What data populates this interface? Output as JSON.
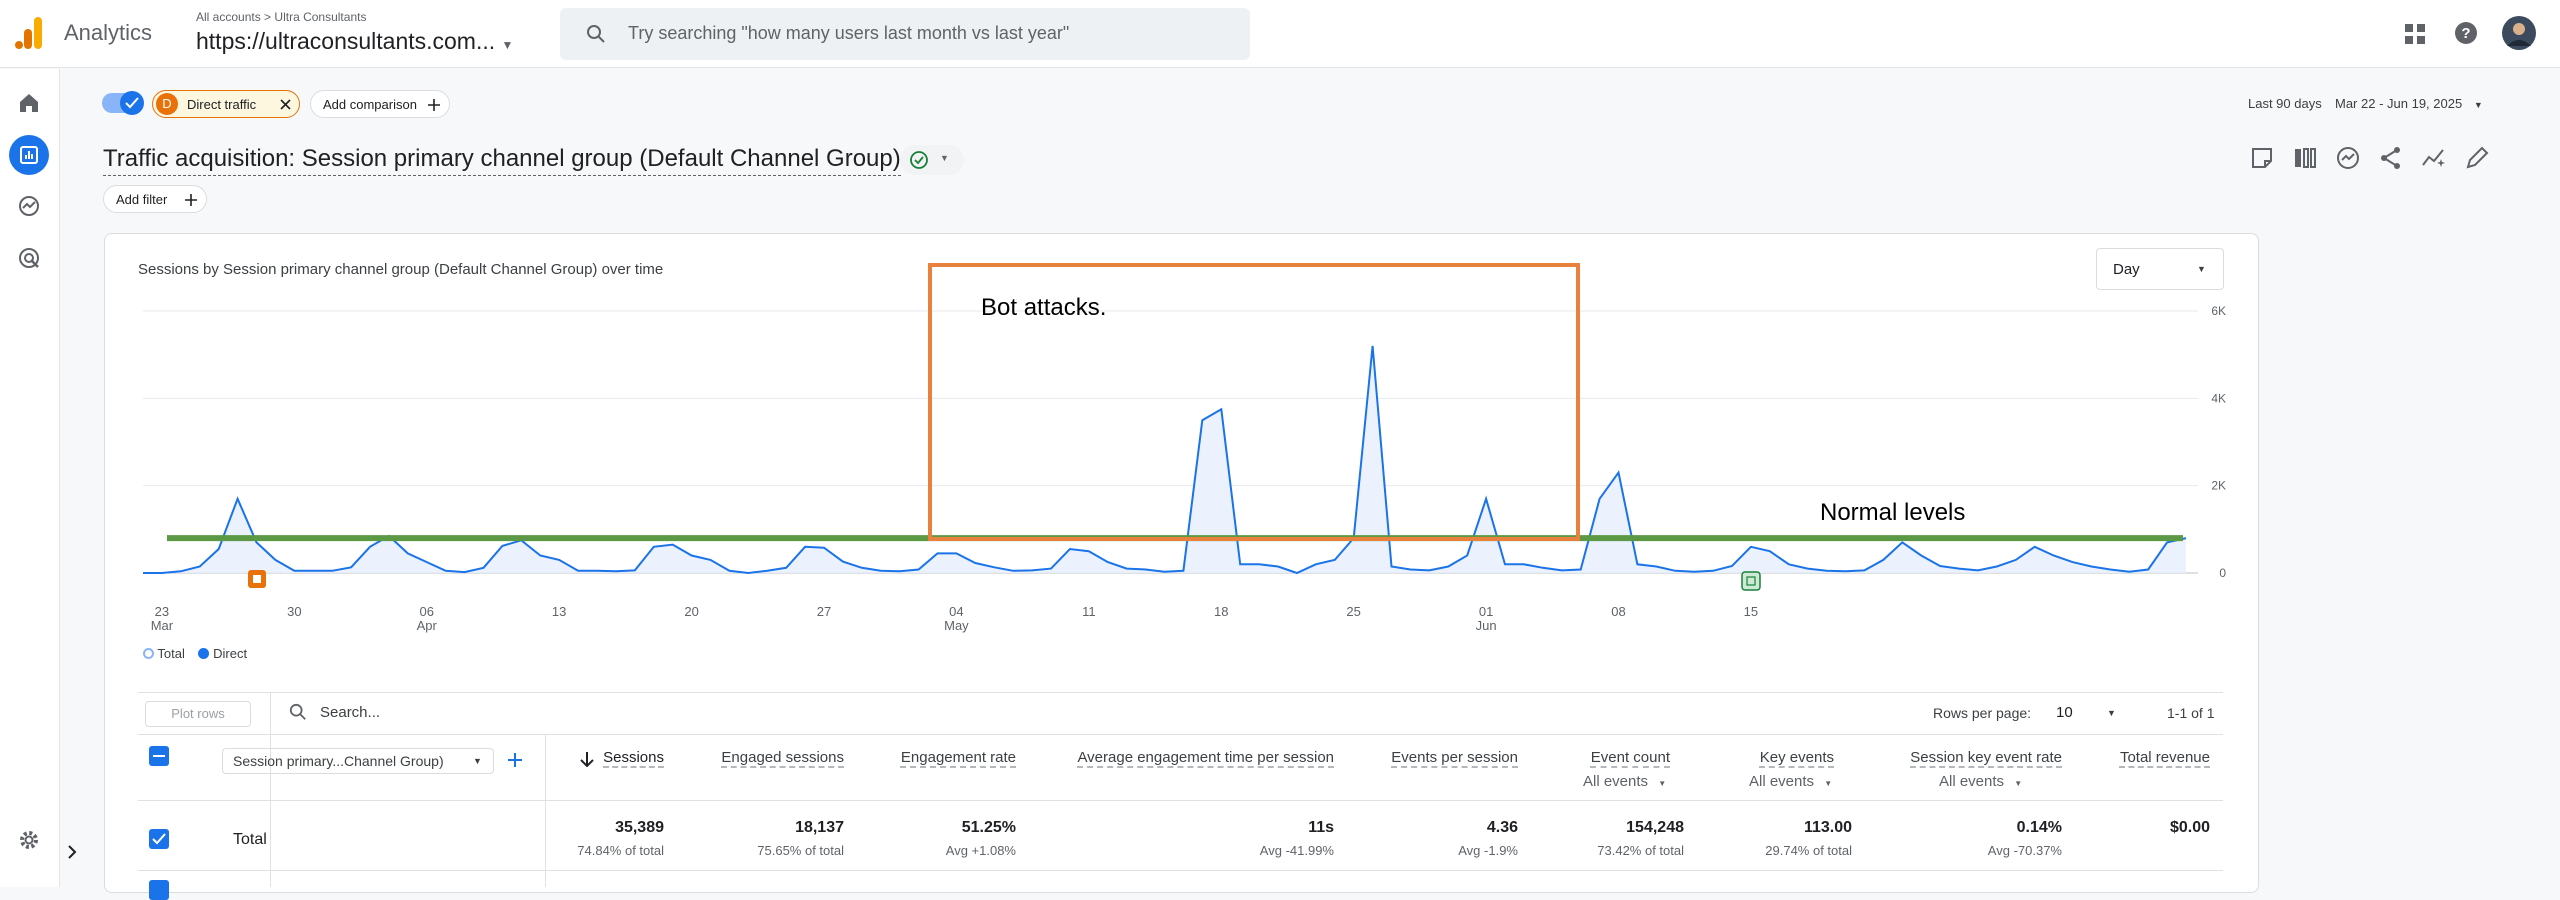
{
  "app": {
    "title": "Analytics"
  },
  "breadcrumb": {
    "all_accounts": "All accounts",
    "separator": ">",
    "account": "Ultra Consultants"
  },
  "property": {
    "name": "https://ultraconsultants.com..."
  },
  "search": {
    "placeholder": "Try searching \"how many users last month vs last year\""
  },
  "filters": {
    "chip_initial": "D",
    "chip_label": "Direct traffic",
    "add_comparison": "Add comparison",
    "add_filter": "Add filter"
  },
  "date_range": {
    "label": "Last 90 days",
    "range": "Mar 22 - Jun 19, 2025"
  },
  "report": {
    "title": "Traffic acquisition: Session primary channel group (Default Channel Group)"
  },
  "chart_card": {
    "title": "Sessions by Session primary channel group (Default Channel Group) over time",
    "granularity": "Day"
  },
  "annotations": {
    "bot_attacks": "Bot attacks.",
    "normal_levels": "Normal levels"
  },
  "colors": {
    "accent": "#1a73e8",
    "line": "#1a73e8",
    "annotation_box": "#e8813d",
    "normal_line": "#5b9945",
    "chip": "#e8710a"
  },
  "chart_data": {
    "type": "line",
    "y_ticks": [
      "6K",
      "4K",
      "2K",
      "0"
    ],
    "ylim": [
      0,
      6000
    ],
    "x_ticks": [
      {
        "day": "23",
        "month": "Mar"
      },
      {
        "day": "30",
        "month": ""
      },
      {
        "day": "06",
        "month": "Apr"
      },
      {
        "day": "13",
        "month": ""
      },
      {
        "day": "20",
        "month": ""
      },
      {
        "day": "27",
        "month": ""
      },
      {
        "day": "04",
        "month": "May"
      },
      {
        "day": "11",
        "month": ""
      },
      {
        "day": "18",
        "month": ""
      },
      {
        "day": "25",
        "month": ""
      },
      {
        "day": "01",
        "month": "Jun"
      },
      {
        "day": "08",
        "month": ""
      },
      {
        "day": "15",
        "month": ""
      }
    ],
    "series": [
      {
        "name": "Direct",
        "values": [
          0,
          0,
          40,
          150,
          550,
          1700,
          700,
          300,
          50,
          50,
          50,
          130,
          600,
          850,
          450,
          250,
          50,
          20,
          120,
          620,
          750,
          400,
          300,
          50,
          50,
          40,
          60,
          600,
          650,
          400,
          300,
          50,
          0,
          50,
          120,
          600,
          580,
          260,
          120,
          50,
          40,
          80,
          450,
          450,
          230,
          130,
          50,
          60,
          100,
          550,
          500,
          250,
          100,
          80,
          30,
          50,
          3500,
          3750,
          200,
          200,
          150,
          0,
          200,
          300,
          800,
          5200,
          150,
          80,
          60,
          150,
          400,
          1700,
          200,
          200,
          120,
          60,
          80,
          1700,
          2300,
          200,
          150,
          50,
          30,
          50,
          160,
          600,
          500,
          200,
          100,
          50,
          40,
          60,
          300,
          700,
          400,
          160,
          100,
          60,
          150,
          300,
          600,
          400,
          250,
          150,
          80,
          30,
          80,
          700,
          800
        ]
      },
      {
        "name": "Total",
        "values": []
      }
    ],
    "legend": [
      "Total",
      "Direct"
    ],
    "normal_level": 800
  },
  "table": {
    "plot_rows": "Plot rows",
    "search_placeholder": "Search...",
    "rows_per_page_label": "Rows per page:",
    "rows_per_page": "10",
    "pagination": "1-1 of 1",
    "dimension": "Session primary...Channel Group)",
    "columns": [
      {
        "label": "Sessions",
        "sub": ""
      },
      {
        "label": "Engaged sessions",
        "sub": ""
      },
      {
        "label": "Engagement rate",
        "sub": ""
      },
      {
        "label": "Average engagement time per session",
        "sub": ""
      },
      {
        "label": "Events per session",
        "sub": ""
      },
      {
        "label": "Event count",
        "sub": "All events"
      },
      {
        "label": "Key events",
        "sub": "All events"
      },
      {
        "label": "Session key event rate",
        "sub": "All events"
      },
      {
        "label": "Total revenue",
        "sub": ""
      }
    ],
    "total_row": {
      "label": "Total",
      "values": [
        "35,389",
        "18,137",
        "51.25%",
        "11s",
        "4.36",
        "154,248",
        "113.00",
        "0.14%",
        "$0.00"
      ],
      "subtexts": [
        "74.84% of total",
        "75.65% of total",
        "Avg +1.08%",
        "Avg -41.99%",
        "Avg -1.9%",
        "73.42% of total",
        "29.74% of total",
        "Avg -70.37%",
        ""
      ]
    }
  }
}
